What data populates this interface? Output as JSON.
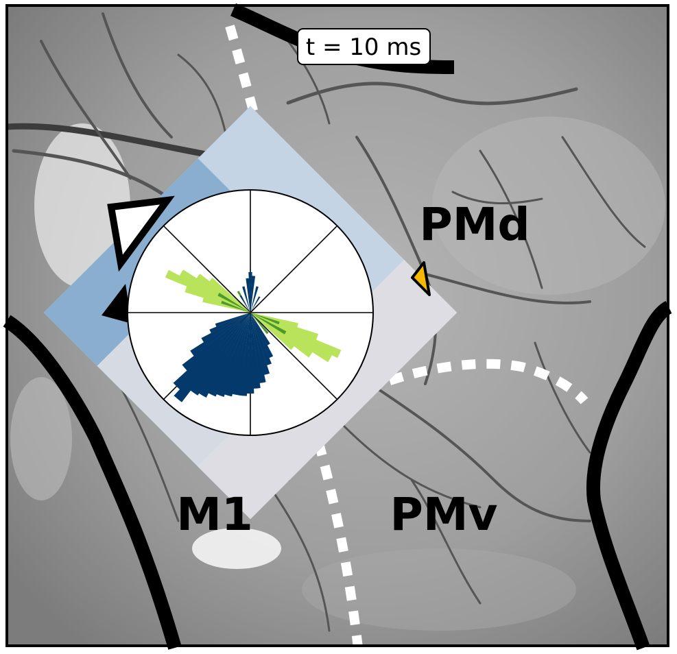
{
  "time_label": "t = 10 ms",
  "regions": {
    "pmd": "PMd",
    "pmv": "PMv",
    "m1": "M1"
  },
  "colors": {
    "background_gray": "#9c9c9c",
    "sulcus_line": "#000000",
    "boundary_dashes": "#ffffff",
    "histogram_dark": "#043a6b",
    "histogram_mid": "#4d9a2a",
    "histogram_light": "#b9e35a",
    "marker_orange": "#f5b800"
  },
  "chart_data": {
    "type": "polar-histogram",
    "title": "",
    "grid": true,
    "spokes_deg": [
      0,
      45,
      90,
      135,
      180,
      225,
      270,
      315
    ],
    "series": [
      {
        "color": "#b9e35a",
        "bins": [
          {
            "angle_deg": 155,
            "r": 0.75
          },
          {
            "angle_deg": 150,
            "r": 0.65
          },
          {
            "angle_deg": 145,
            "r": 0.52
          },
          {
            "angle_deg": 160,
            "r": 0.56
          },
          {
            "angle_deg": 140,
            "r": 0.42
          },
          {
            "angle_deg": 165,
            "r": 0.4
          },
          {
            "angle_deg": 335,
            "r": 0.8
          },
          {
            "angle_deg": 330,
            "r": 0.75
          },
          {
            "angle_deg": 325,
            "r": 0.6
          },
          {
            "angle_deg": 340,
            "r": 0.58
          },
          {
            "angle_deg": 320,
            "r": 0.45
          },
          {
            "angle_deg": 345,
            "r": 0.4
          }
        ]
      },
      {
        "color": "#4d9a2a",
        "bins": [
          {
            "angle_deg": 150,
            "r": 0.3
          },
          {
            "angle_deg": 160,
            "r": 0.25
          },
          {
            "angle_deg": 120,
            "r": 0.2
          },
          {
            "angle_deg": 330,
            "r": 0.33
          },
          {
            "angle_deg": 340,
            "r": 0.25
          },
          {
            "angle_deg": 310,
            "r": 0.22
          }
        ]
      },
      {
        "color": "#043a6b",
        "bins": [
          {
            "angle_deg": 230,
            "r": 0.92
          },
          {
            "angle_deg": 225,
            "r": 0.85
          },
          {
            "angle_deg": 235,
            "r": 0.8
          },
          {
            "angle_deg": 240,
            "r": 0.78
          },
          {
            "angle_deg": 245,
            "r": 0.74
          },
          {
            "angle_deg": 250,
            "r": 0.72
          },
          {
            "angle_deg": 255,
            "r": 0.7
          },
          {
            "angle_deg": 260,
            "r": 0.68
          },
          {
            "angle_deg": 265,
            "r": 0.68
          },
          {
            "angle_deg": 270,
            "r": 0.66
          },
          {
            "angle_deg": 275,
            "r": 0.62
          },
          {
            "angle_deg": 280,
            "r": 0.58
          },
          {
            "angle_deg": 285,
            "r": 0.52
          },
          {
            "angle_deg": 220,
            "r": 0.7
          },
          {
            "angle_deg": 215,
            "r": 0.58
          },
          {
            "angle_deg": 210,
            "r": 0.45
          },
          {
            "angle_deg": 205,
            "r": 0.36
          },
          {
            "angle_deg": 200,
            "r": 0.3
          },
          {
            "angle_deg": 290,
            "r": 0.45
          },
          {
            "angle_deg": 295,
            "r": 0.4
          },
          {
            "angle_deg": 300,
            "r": 0.3
          },
          {
            "angle_deg": 90,
            "r": 0.33
          },
          {
            "angle_deg": 85,
            "r": 0.3
          },
          {
            "angle_deg": 95,
            "r": 0.28
          },
          {
            "angle_deg": 75,
            "r": 0.22
          },
          {
            "angle_deg": 105,
            "r": 0.22
          },
          {
            "angle_deg": 60,
            "r": 0.15
          },
          {
            "angle_deg": 120,
            "r": 0.16
          }
        ]
      }
    ]
  }
}
